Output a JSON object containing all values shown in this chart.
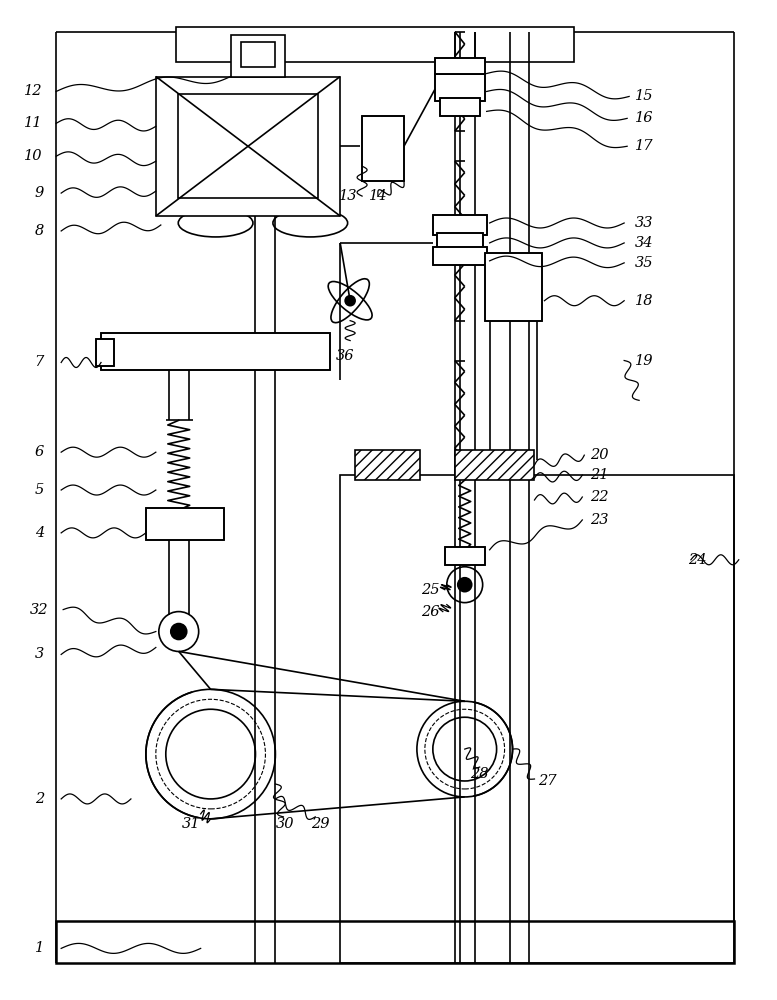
{
  "bg_color": "#ffffff",
  "lc": "#000000",
  "lw": 1.2,
  "lw2": 1.8,
  "fig_w": 7.77,
  "fig_h": 10.0,
  "dpi": 100
}
